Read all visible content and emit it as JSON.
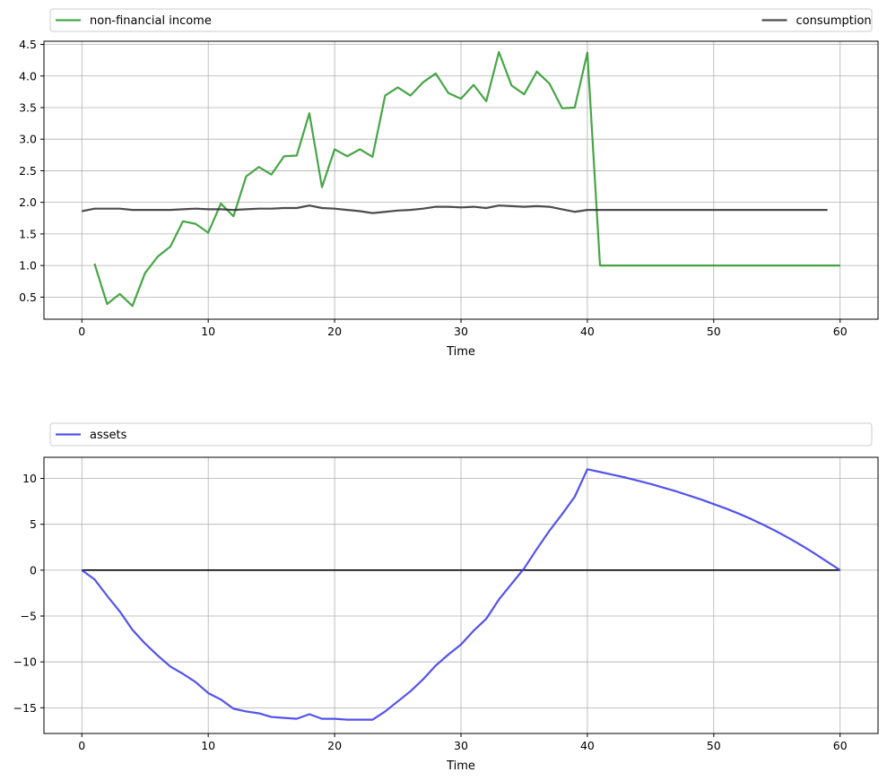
{
  "chart_data": [
    {
      "type": "line",
      "xlabel": "Time",
      "xlim": [
        -3,
        63
      ],
      "ylim": [
        0.15,
        4.55
      ],
      "xticks": [
        0,
        10,
        20,
        30,
        40,
        50,
        60
      ],
      "yticks": [
        0.5,
        1.0,
        1.5,
        2.0,
        2.5,
        3.0,
        3.5,
        4.0,
        4.5
      ],
      "ytick_labels": [
        "0.5",
        "1.0",
        "1.5",
        "2.0",
        "2.5",
        "3.0",
        "3.5",
        "4.0",
        "4.5"
      ],
      "grid": true,
      "legend_placement": "top, above plot",
      "series": [
        {
          "name": "non-financial income",
          "color": "#2e9a2e",
          "x": [
            1,
            2,
            3,
            4,
            5,
            6,
            7,
            8,
            9,
            10,
            11,
            12,
            13,
            14,
            15,
            16,
            17,
            18,
            19,
            20,
            21,
            22,
            23,
            24,
            25,
            26,
            27,
            28,
            29,
            30,
            31,
            32,
            33,
            34,
            35,
            36,
            37,
            38,
            39,
            40,
            41,
            42,
            43,
            44,
            45,
            46,
            47,
            48,
            49,
            50,
            51,
            52,
            53,
            54,
            55,
            56,
            57,
            58,
            59,
            60
          ],
          "values": [
            1.03,
            0.39,
            0.55,
            0.36,
            0.88,
            1.14,
            1.3,
            1.7,
            1.66,
            1.52,
            1.98,
            1.78,
            2.41,
            2.56,
            2.44,
            2.73,
            2.74,
            3.41,
            2.24,
            2.84,
            2.73,
            2.84,
            2.72,
            3.69,
            3.82,
            3.69,
            3.9,
            4.04,
            3.73,
            3.64,
            3.86,
            3.6,
            4.38,
            3.85,
            3.71,
            4.07,
            3.88,
            3.49,
            3.5,
            4.37,
            1.0,
            1.0,
            1.0,
            1.0,
            1.0,
            1.0,
            1.0,
            1.0,
            1.0,
            1.0,
            1.0,
            1.0,
            1.0,
            1.0,
            1.0,
            1.0,
            1.0,
            1.0,
            1.0,
            1.0
          ]
        },
        {
          "name": "consumption",
          "color": "#333333",
          "x": [
            0,
            1,
            2,
            3,
            4,
            5,
            6,
            7,
            8,
            9,
            10,
            11,
            12,
            13,
            14,
            15,
            16,
            17,
            18,
            19,
            20,
            21,
            22,
            23,
            24,
            25,
            26,
            27,
            28,
            29,
            30,
            31,
            32,
            33,
            34,
            35,
            36,
            37,
            38,
            39,
            40,
            41,
            42,
            43,
            44,
            45,
            46,
            47,
            48,
            49,
            50,
            51,
            52,
            53,
            54,
            55,
            56,
            57,
            58,
            59
          ],
          "values": [
            1.86,
            1.9,
            1.9,
            1.9,
            1.88,
            1.88,
            1.88,
            1.88,
            1.89,
            1.9,
            1.89,
            1.89,
            1.88,
            1.89,
            1.9,
            1.9,
            1.91,
            1.91,
            1.95,
            1.91,
            1.9,
            1.88,
            1.86,
            1.83,
            1.85,
            1.87,
            1.88,
            1.9,
            1.93,
            1.93,
            1.92,
            1.93,
            1.91,
            1.95,
            1.94,
            1.93,
            1.94,
            1.93,
            1.89,
            1.85,
            1.88,
            1.88,
            1.88,
            1.88,
            1.88,
            1.88,
            1.88,
            1.88,
            1.88,
            1.88,
            1.88,
            1.88,
            1.88,
            1.88,
            1.88,
            1.88,
            1.88,
            1.88,
            1.88,
            1.88
          ]
        }
      ]
    },
    {
      "type": "line",
      "xlabel": "Time",
      "xlim": [
        -3,
        63
      ],
      "ylim": [
        -17.8,
        12.3
      ],
      "xticks": [
        0,
        10,
        20,
        30,
        40,
        50,
        60
      ],
      "yticks": [
        -15,
        -10,
        -5,
        0,
        5,
        10
      ],
      "ytick_labels": [
        "−15",
        "−10",
        "−5",
        "0",
        "5",
        "10"
      ],
      "grid": true,
      "legend_placement": "top-left, above plot",
      "reference_line": {
        "y": 0,
        "color": "#000000"
      },
      "series": [
        {
          "name": "assets",
          "color": "#3b3bea",
          "x": [
            0,
            1,
            2,
            3,
            4,
            5,
            6,
            7,
            8,
            9,
            10,
            11,
            12,
            13,
            14,
            15,
            16,
            17,
            18,
            19,
            20,
            21,
            22,
            23,
            24,
            25,
            26,
            27,
            28,
            29,
            30,
            31,
            32,
            33,
            34,
            35,
            36,
            37,
            38,
            39,
            40,
            41,
            42,
            43,
            44,
            45,
            46,
            47,
            48,
            49,
            50,
            51,
            52,
            53,
            54,
            55,
            56,
            57,
            58,
            59,
            60
          ],
          "values": [
            0,
            -1.0,
            -2.8,
            -4.5,
            -6.5,
            -8.0,
            -9.3,
            -10.5,
            -11.3,
            -12.2,
            -13.4,
            -14.1,
            -15.1,
            -15.4,
            -15.6,
            -16.0,
            -16.1,
            -16.2,
            -15.7,
            -16.2,
            -16.2,
            -16.3,
            -16.3,
            -16.3,
            -15.4,
            -14.3,
            -13.2,
            -11.9,
            -10.4,
            -9.2,
            -8.1,
            -6.6,
            -5.3,
            -3.2,
            -1.5,
            0.2,
            2.3,
            4.3,
            6.1,
            8.0,
            11.0,
            10.7,
            10.4,
            10.1,
            9.75,
            9.4,
            9.0,
            8.6,
            8.15,
            7.7,
            7.2,
            6.7,
            6.15,
            5.55,
            4.9,
            4.2,
            3.45,
            2.65,
            1.8,
            0.9,
            0.0
          ]
        }
      ]
    }
  ]
}
